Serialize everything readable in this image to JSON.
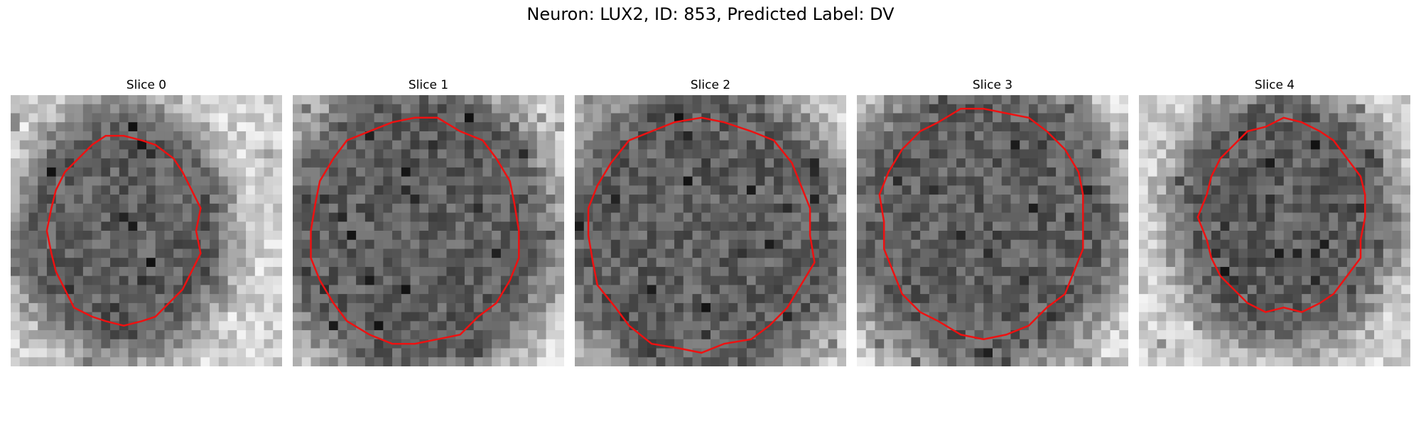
{
  "figure": {
    "title": "Neuron: LUX2, ID: 853, Predicted Label: DV"
  },
  "panels": [
    {
      "title": "Slice 0",
      "seed": 11,
      "center": [
        12.5,
        15.0
      ],
      "rx": 8.4,
      "ry": 10.4,
      "contour_color": "#ee1111"
    },
    {
      "title": "Slice 1",
      "seed": 23,
      "center": [
        13.5,
        15.0
      ],
      "rx": 11.6,
      "ry": 12.6,
      "contour_color": "#ee1111"
    },
    {
      "title": "Slice 2",
      "seed": 37,
      "center": [
        14.0,
        15.5
      ],
      "rx": 12.4,
      "ry": 12.9,
      "contour_color": "#ee1111"
    },
    {
      "title": "Slice 3",
      "seed": 41,
      "center": [
        14.0,
        14.0
      ],
      "rx": 11.4,
      "ry": 12.6,
      "contour_color": "#ee1111"
    },
    {
      "title": "Slice 4",
      "seed": 59,
      "center": [
        16.0,
        13.5
      ],
      "rx": 9.0,
      "ry": 10.5,
      "contour_color": "#ee1111"
    }
  ]
}
